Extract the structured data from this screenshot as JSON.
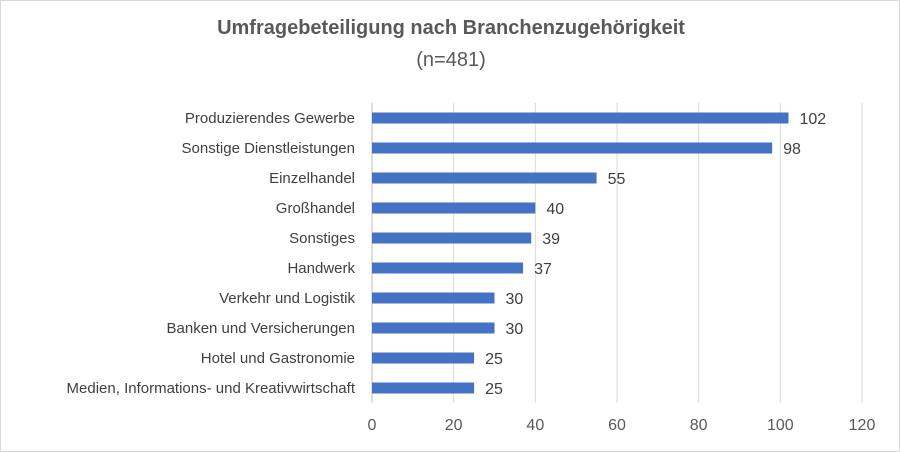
{
  "chart_data": {
    "type": "bar",
    "orientation": "horizontal",
    "title": "Umfragebeteiligung nach Branchenzugehörigkeit",
    "subtitle": "(n=481)",
    "categories": [
      "Produzierendes Gewerbe",
      "Sonstige Dienstleistungen",
      "Einzelhandel",
      "Großhandel",
      "Sonstiges",
      "Handwerk",
      "Verkehr und Logistik",
      "Banken und Versicherungen",
      "Hotel und Gastronomie",
      "Medien, Informations- und Kreativwirtschaft"
    ],
    "values": [
      102,
      98,
      55,
      40,
      39,
      37,
      30,
      30,
      25,
      25
    ],
    "xlim": [
      0,
      120
    ],
    "xticks": [
      0,
      20,
      40,
      60,
      80,
      100,
      120
    ],
    "grid": true,
    "data_labels": true,
    "bar_color": "#4472c4"
  }
}
